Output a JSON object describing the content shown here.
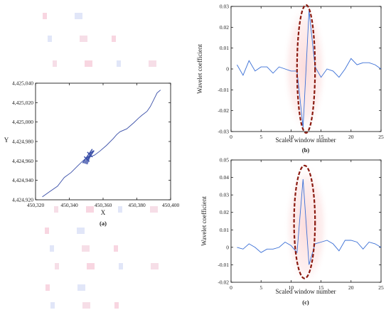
{
  "chart_data": [
    {
      "panel": "(a)",
      "type": "line",
      "xlabel": "X",
      "ylabel": "Y",
      "xlim": [
        450320,
        450400
      ],
      "ylim": [
        4424920,
        4425040
      ],
      "xticks": [
        450320,
        450340,
        450360,
        450380,
        450400
      ],
      "yticks": [
        4424920,
        4424940,
        4424960,
        4424980,
        4425000,
        4425020,
        4425040
      ],
      "xtick_labels": [
        "450,320",
        "450,340",
        "450,360",
        "450,380",
        "450,400"
      ],
      "ytick_labels": [
        "4,424,920",
        "4,424,940",
        "4,424,960",
        "4,424,980",
        "4,425,000",
        "4,425,020",
        "4,425,040"
      ],
      "series_color": "#3a4fa8",
      "x": [
        450324,
        450328,
        450333,
        450337,
        450341,
        450345,
        450348,
        450350,
        450352,
        450355,
        450358,
        450362,
        450366,
        450368,
        450370,
        450374,
        450378,
        450381,
        450383,
        450386,
        450388,
        450390,
        450392,
        450394
      ],
      "y": [
        4424923,
        4424928,
        4424934,
        4424943,
        4424948,
        4424955,
        4424960,
        4424963,
        4424964,
        4424966,
        4424970,
        4424976,
        4424983,
        4424987,
        4424990,
        4424993,
        4424999,
        4425004,
        4425007,
        4425011,
        4425016,
        4425023,
        4425030,
        4425033
      ],
      "cluster": {
        "x": [
          450350,
          450354
        ],
        "y": [
          4424960,
          4424970
        ]
      }
    },
    {
      "panel": "(b)",
      "type": "line",
      "xlabel": "Scaled window number",
      "ylabel": "Wavelet coefficient",
      "xlim": [
        0,
        25
      ],
      "ylim": [
        -0.03,
        0.03
      ],
      "xticks": [
        0,
        5,
        10,
        15,
        20,
        25
      ],
      "yticks": [
        -0.03,
        -0.02,
        -0.01,
        0,
        0.01,
        0.02,
        0.03
      ],
      "xtick_labels": [
        "0",
        "5",
        "10",
        "15",
        "20",
        "25"
      ],
      "ytick_labels": [
        "-0.03",
        "-0.02",
        "-0.01",
        "0",
        "0.01",
        "0.02",
        "0.03"
      ],
      "series_color": "#3a6fd6",
      "highlight_color": "#8b1a10",
      "x": [
        1,
        2,
        3,
        4,
        5,
        6,
        7,
        8,
        9,
        10,
        11,
        12,
        13,
        14,
        15,
        16,
        17,
        18,
        19,
        20,
        21,
        22,
        23,
        24,
        25
      ],
      "y": [
        0.002,
        -0.003,
        0.004,
        -0.001,
        0.001,
        0.001,
        -0.002,
        0.001,
        0.0,
        -0.001,
        -0.001,
        -0.028,
        0.028,
        0.001,
        -0.004,
        0.0,
        -0.001,
        -0.004,
        0.0,
        0.005,
        0.002,
        0.003,
        0.003,
        0.002,
        0.0
      ],
      "highlight": {
        "x": [
          11,
          14
        ],
        "y": [
          -0.03,
          0.03
        ]
      }
    },
    {
      "panel": "(c)",
      "type": "line",
      "xlabel": "Scaled window number",
      "ylabel": "Wavelet coefficient",
      "xlim": [
        0,
        25
      ],
      "ylim": [
        -0.02,
        0.05
      ],
      "xticks": [
        0,
        5,
        10,
        15,
        20,
        25
      ],
      "yticks": [
        -0.02,
        -0.01,
        0,
        0.01,
        0.02,
        0.03,
        0.04,
        0.05
      ],
      "xtick_labels": [
        "0",
        "5",
        "10",
        "15",
        "20",
        "25"
      ],
      "ytick_labels": [
        "-0.02",
        "-0.01",
        "0",
        "0.01",
        "0.02",
        "0.03",
        "0.04",
        "0.05"
      ],
      "series_color": "#3a6fd6",
      "highlight_color": "#8b1a10",
      "x": [
        1,
        2,
        3,
        4,
        5,
        6,
        7,
        8,
        9,
        10,
        11,
        12,
        13,
        14,
        15,
        16,
        17,
        18,
        19,
        20,
        21,
        22,
        23,
        24,
        25
      ],
      "y": [
        0.0,
        -0.001,
        0.002,
        0.0,
        -0.003,
        -0.001,
        -0.001,
        0.0,
        0.003,
        0.001,
        -0.003,
        0.039,
        -0.01,
        0.002,
        0.003,
        0.004,
        0.002,
        -0.002,
        0.004,
        0.004,
        0.003,
        -0.001,
        0.003,
        0.002,
        0.0
      ],
      "highlight": {
        "x": [
          10.5,
          14
        ],
        "y": [
          -0.017,
          0.046
        ]
      }
    }
  ]
}
